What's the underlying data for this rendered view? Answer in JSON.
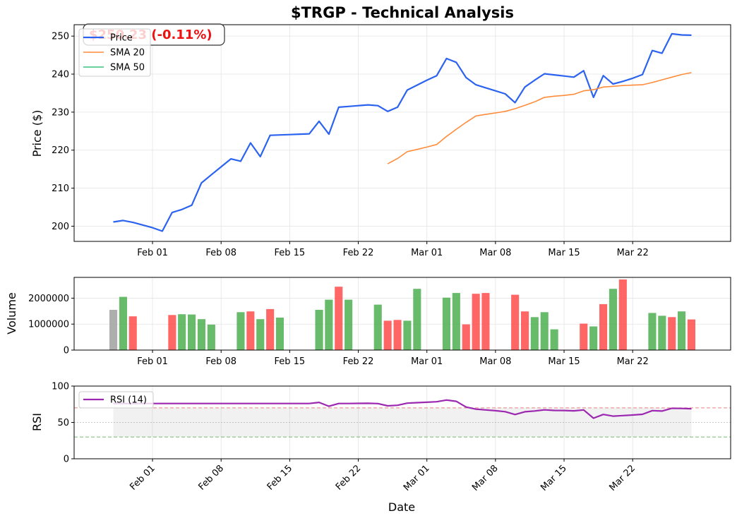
{
  "page": {
    "title": "$TRGP - Technical Analysis",
    "price_badge": "$250.23 (-0.11%)",
    "x_label": "Date"
  },
  "colors": {
    "price": "#2b63f0",
    "sma20": "#ff8c3a",
    "sma50": "#3ac47d",
    "rsi": "#9c27b0",
    "vol_up": "#4caf50",
    "vol_down": "#ff4c4c",
    "vol_neutral": "#a0a0a0",
    "badge_text": "#ee1111",
    "overbought": "#e05050",
    "oversold": "#3aa03a"
  },
  "chart_data": [
    {
      "type": "line",
      "panel": "price",
      "ylabel": "Price ($)",
      "ylim": [
        196,
        253
      ],
      "yticks": [
        200,
        210,
        220,
        230,
        240,
        250
      ],
      "x_ticks": [
        "Feb 01",
        "Feb 08",
        "Feb 15",
        "Feb 22",
        "Mar 01",
        "Mar 08",
        "Mar 15",
        "Mar 22"
      ],
      "x_tick_dates": [
        "2025-02-01",
        "2025-02-08",
        "2025-02-15",
        "2025-02-22",
        "2025-03-01",
        "2025-03-08",
        "2025-03-15",
        "2025-03-22"
      ],
      "xlim": [
        "2025-01-24",
        "2025-04-01"
      ],
      "grid": true,
      "legend": "top-left",
      "series": [
        {
          "name": "Price",
          "x": [
            "2025-01-28",
            "2025-01-29",
            "2025-01-30",
            "2025-01-31",
            "2025-02-01",
            "2025-02-02",
            "2025-02-03",
            "2025-02-04",
            "2025-02-05",
            "2025-02-06",
            "2025-02-07",
            "2025-02-08",
            "2025-02-09",
            "2025-02-10",
            "2025-02-11",
            "2025-02-12",
            "2025-02-13",
            "2025-02-14",
            "2025-02-15",
            "2025-02-16",
            "2025-02-17",
            "2025-02-18",
            "2025-02-19",
            "2025-02-20",
            "2025-02-21",
            "2025-02-22",
            "2025-02-23",
            "2025-02-24",
            "2025-02-25",
            "2025-02-26",
            "2025-02-27",
            "2025-02-28",
            "2025-03-01",
            "2025-03-02",
            "2025-03-03",
            "2025-03-04",
            "2025-03-05",
            "2025-03-06",
            "2025-03-07",
            "2025-03-08",
            "2025-03-09",
            "2025-03-10",
            "2025-03-11",
            "2025-03-12",
            "2025-03-13",
            "2025-03-14",
            "2025-03-15",
            "2025-03-16",
            "2025-03-17",
            "2025-03-18",
            "2025-03-19",
            "2025-03-20",
            "2025-03-21",
            "2025-03-22",
            "2025-03-23",
            "2025-03-24",
            "2025-03-25",
            "2025-03-26",
            "2025-03-27",
            "2025-03-28"
          ],
          "values": [
            201.1,
            201.5,
            201.0,
            200.3,
            199.6,
            198.7,
            203.6,
            204.4,
            205.5,
            211.4,
            213.5,
            215.6,
            217.7,
            217.1,
            221.9,
            218.3,
            223.9,
            224.0,
            224.1,
            224.2,
            224.3,
            227.6,
            224.2,
            231.3,
            231.5,
            231.7,
            231.9,
            231.7,
            230.2,
            231.3,
            235.8,
            237.1,
            238.4,
            239.6,
            244.1,
            243.1,
            239.1,
            237.2,
            236.4,
            235.6,
            234.8,
            232.5,
            236.6,
            238.4,
            240.1,
            239.8,
            239.5,
            239.2,
            240.9,
            233.9,
            239.6,
            237.4,
            238.1,
            238.9,
            239.9,
            246.2,
            245.5,
            250.6,
            250.3,
            250.23
          ]
        },
        {
          "name": "SMA 20",
          "x": [
            "2025-02-25",
            "2025-02-26",
            "2025-02-27",
            "2025-02-28",
            "2025-03-01",
            "2025-03-02",
            "2025-03-03",
            "2025-03-04",
            "2025-03-05",
            "2025-03-06",
            "2025-03-07",
            "2025-03-08",
            "2025-03-09",
            "2025-03-10",
            "2025-03-11",
            "2025-03-12",
            "2025-03-13",
            "2025-03-14",
            "2025-03-15",
            "2025-03-16",
            "2025-03-17",
            "2025-03-18",
            "2025-03-19",
            "2025-03-20",
            "2025-03-21",
            "2025-03-22",
            "2025-03-23",
            "2025-03-24",
            "2025-03-25",
            "2025-03-26",
            "2025-03-27",
            "2025-03-28"
          ],
          "values": [
            216.4,
            217.8,
            219.6,
            220.2,
            220.8,
            221.5,
            223.6,
            225.5,
            227.3,
            229.0,
            229.4,
            229.8,
            230.2,
            230.9,
            231.8,
            232.7,
            233.9,
            234.2,
            234.4,
            234.7,
            235.6,
            235.9,
            236.6,
            236.8,
            237.0,
            237.1,
            237.2,
            237.8,
            238.5,
            239.2,
            239.9,
            240.4
          ]
        },
        {
          "name": "SMA 50",
          "x": [],
          "values": []
        }
      ]
    },
    {
      "type": "bar",
      "panel": "volume",
      "ylabel": "Volume",
      "ylim": [
        0,
        2800000
      ],
      "yticks": [
        0,
        1000000,
        2000000
      ],
      "ytick_labels": [
        "0",
        "1000000",
        "2000000"
      ],
      "x": [
        "2025-01-28",
        "2025-01-29",
        "2025-01-30",
        "2025-02-03",
        "2025-02-04",
        "2025-02-05",
        "2025-02-06",
        "2025-02-07",
        "2025-02-10",
        "2025-02-11",
        "2025-02-12",
        "2025-02-13",
        "2025-02-14",
        "2025-02-18",
        "2025-02-19",
        "2025-02-20",
        "2025-02-21",
        "2025-02-24",
        "2025-02-25",
        "2025-02-26",
        "2025-02-27",
        "2025-02-28",
        "2025-03-03",
        "2025-03-04",
        "2025-03-05",
        "2025-03-06",
        "2025-03-07",
        "2025-03-10",
        "2025-03-11",
        "2025-03-12",
        "2025-03-13",
        "2025-03-14",
        "2025-03-17",
        "2025-03-18",
        "2025-03-19",
        "2025-03-20",
        "2025-03-21",
        "2025-03-24",
        "2025-03-25",
        "2025-03-26",
        "2025-03-27",
        "2025-03-28"
      ],
      "values": [
        1550000,
        2050000,
        1300000,
        1350000,
        1380000,
        1370000,
        1190000,
        980000,
        1460000,
        1490000,
        1190000,
        1580000,
        1250000,
        1550000,
        1940000,
        2440000,
        1940000,
        1750000,
        1130000,
        1160000,
        1130000,
        2360000,
        2020000,
        2200000,
        990000,
        2170000,
        2200000,
        2130000,
        1490000,
        1270000,
        1460000,
        800000,
        1020000,
        910000,
        1770000,
        2360000,
        2720000,
        1430000,
        1320000,
        1270000,
        1490000,
        1180000
      ],
      "direction": [
        "neutral",
        "up",
        "down",
        "down",
        "up",
        "up",
        "up",
        "up",
        "up",
        "down",
        "up",
        "down",
        "up",
        "up",
        "up",
        "down",
        "up",
        "up",
        "down",
        "down",
        "up",
        "up",
        "up",
        "up",
        "down",
        "down",
        "down",
        "down",
        "down",
        "up",
        "up",
        "up",
        "down",
        "up",
        "down",
        "up",
        "down",
        "up",
        "up",
        "down",
        "up",
        "down"
      ],
      "grid": true
    },
    {
      "type": "line",
      "panel": "rsi",
      "ylabel": "RSI",
      "ylim": [
        0,
        100
      ],
      "yticks": [
        0,
        50,
        100
      ],
      "overbought": 70,
      "oversold": 30,
      "midline": 50,
      "band": [
        30,
        70
      ],
      "legend": "top-left",
      "series": [
        {
          "name": "RSI (14)",
          "x": [
            "2025-01-28",
            "2025-01-29",
            "2025-01-30",
            "2025-01-31",
            "2025-02-01",
            "2025-02-02",
            "2025-02-03",
            "2025-02-04",
            "2025-02-05",
            "2025-02-06",
            "2025-02-07",
            "2025-02-08",
            "2025-02-09",
            "2025-02-10",
            "2025-02-11",
            "2025-02-12",
            "2025-02-13",
            "2025-02-14",
            "2025-02-15",
            "2025-02-16",
            "2025-02-17",
            "2025-02-18",
            "2025-02-19",
            "2025-02-20",
            "2025-02-21",
            "2025-02-22",
            "2025-02-23",
            "2025-02-24",
            "2025-02-25",
            "2025-02-26",
            "2025-02-27",
            "2025-02-28",
            "2025-03-01",
            "2025-03-02",
            "2025-03-03",
            "2025-03-04",
            "2025-03-05",
            "2025-03-06",
            "2025-03-07",
            "2025-03-08",
            "2025-03-09",
            "2025-03-10",
            "2025-03-11",
            "2025-03-12",
            "2025-03-13",
            "2025-03-14",
            "2025-03-15",
            "2025-03-16",
            "2025-03-17",
            "2025-03-18",
            "2025-03-19",
            "2025-03-20",
            "2025-03-21",
            "2025-03-22",
            "2025-03-23",
            "2025-03-24",
            "2025-03-25",
            "2025-03-26",
            "2025-03-27",
            "2025-03-28"
          ],
          "values": [
            76,
            76,
            76,
            76,
            76,
            76,
            76,
            76,
            76,
            76,
            76,
            76,
            76,
            76,
            76,
            76,
            76,
            76,
            76,
            76,
            76,
            77.6,
            72.2,
            76,
            76,
            76.2,
            76.3,
            75.9,
            72.8,
            73.6,
            76.5,
            77.2,
            77.8,
            78.4,
            80.8,
            79,
            71.2,
            68.3,
            67.2,
            66.1,
            64.8,
            60.9,
            64.7,
            65.7,
            67.3,
            66.5,
            66.4,
            65.9,
            67.2,
            55.8,
            61,
            58.6,
            59.4,
            60.2,
            61.2,
            66.2,
            65.6,
            69.4,
            69.2,
            68.8
          ]
        }
      ]
    }
  ]
}
